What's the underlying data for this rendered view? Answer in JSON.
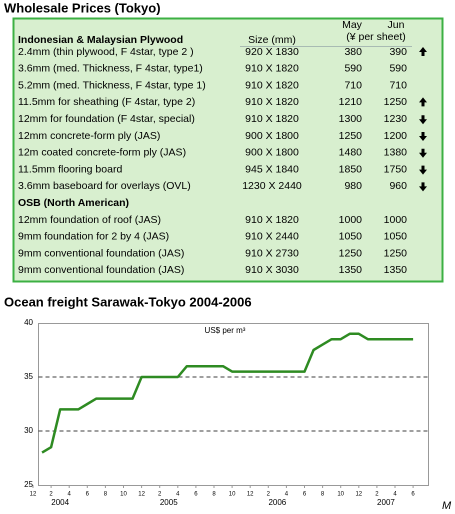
{
  "table": {
    "title": "Wholesale Prices (Tokyo)",
    "header": {
      "section": "Indonesian & Malaysian Plywood",
      "size": "Size (mm)",
      "may": "May",
      "jun": "Jun",
      "unit": "(¥ per sheet)"
    },
    "rows": [
      {
        "name": "2.4mm  (thin plywood, F 4star, type 2 )",
        "size": "920 X 1830",
        "may": 380,
        "jun": 390,
        "trend": "up"
      },
      {
        "name": "3.6mm  (med. Thickness,  F 4star, type1)",
        "size": "910 X 1820",
        "may": 590,
        "jun": 590
      },
      {
        "name": "5.2mm  (med. Thickness, F 4star, type 1)",
        "size": "910 X 1820",
        "may": 710,
        "jun": 710
      },
      {
        "name": "11.5mm  for sheathing (F 4star, type 2)",
        "size": "910 X 1820",
        "may": 1210,
        "jun": 1250,
        "trend": "up"
      },
      {
        "name": "12mm for foundation (F 4star, special)",
        "size": "910 X 1820",
        "may": 1300,
        "jun": 1230,
        "trend": "down"
      },
      {
        "name": "12mm concrete-form ply (JAS)",
        "size": "900 X 1800",
        "may": 1250,
        "jun": 1200,
        "trend": "down"
      },
      {
        "name": "12m coated concrete-form ply (JAS)",
        "size": "900 X 1800",
        "may": 1480,
        "jun": 1380,
        "trend": "down"
      },
      {
        "name": "11.5mm flooring board",
        "size": "945 X 1840",
        "may": 1850,
        "jun": 1750,
        "trend": "down"
      },
      {
        "name": "3.6mm baseboard for overlays (OVL)",
        "size": "1230 X 2440",
        "may": 980,
        "jun": 960,
        "trend": "down"
      }
    ],
    "section2": "OSB (North American)",
    "rows2": [
      {
        "name": "12mm foundation of roof (JAS)",
        "size": "910 X 1820",
        "may": 1000,
        "jun": 1000
      },
      {
        "name": "9mm foundation for 2 by 4 (JAS)",
        "size": "910 X 2440",
        "may": 1050,
        "jun": 1050
      },
      {
        "name": "9mm conventional foundation (JAS)",
        "size": "910 X 2730",
        "may": 1250,
        "jun": 1250
      },
      {
        "name": "9mm conventional foundation (JAS)",
        "size": "910 X 3030",
        "may": 1350,
        "jun": 1350
      }
    ]
  },
  "chart_data": {
    "type": "line",
    "title": "Ocean freight Sarawak-Tokyo 2004-2006",
    "annotation": "US$ per m³",
    "x_label": "M",
    "x": [
      "2004-01",
      "2004-02",
      "2004-03",
      "2004-04",
      "2004-05",
      "2004-06",
      "2004-07",
      "2004-08",
      "2004-09",
      "2004-10",
      "2004-11",
      "2004-12",
      "2005-01",
      "2005-02",
      "2005-03",
      "2005-04",
      "2005-05",
      "2005-06",
      "2005-07",
      "2005-08",
      "2005-09",
      "2005-10",
      "2005-11",
      "2005-12",
      "2006-01",
      "2006-02",
      "2006-03",
      "2006-04",
      "2006-05",
      "2006-06",
      "2006-07",
      "2006-08",
      "2006-09",
      "2006-10",
      "2006-11",
      "2006-12",
      "2007-01",
      "2007-02",
      "2007-03",
      "2007-04",
      "2007-05",
      "2007-06"
    ],
    "series": [
      {
        "color": "#2e8b22",
        "values": [
          28,
          28.5,
          32,
          32,
          32,
          32.5,
          33,
          33,
          33,
          33,
          33,
          35,
          35,
          35,
          35,
          35,
          36,
          36,
          36,
          36,
          36,
          35.5,
          35.5,
          35.5,
          35.5,
          35.5,
          35.5,
          35.5,
          35.5,
          35.5,
          37.5,
          38,
          38.5,
          38.5,
          39,
          39,
          38.5,
          38.5,
          38.5,
          38.5,
          38.5,
          38.5
        ]
      }
    ],
    "ylim": [
      25,
      40
    ],
    "yticks": [
      25,
      30,
      35,
      40
    ],
    "grid": true,
    "xticks": [
      {
        "value": "2003-12",
        "label": "12"
      },
      {
        "value": "2004-02",
        "label": "2"
      },
      {
        "value": "2004-04",
        "label": "4"
      },
      {
        "value": "2004-06",
        "label": "6"
      },
      {
        "value": "2004-08",
        "label": "8"
      },
      {
        "value": "2004-10",
        "label": "10"
      },
      {
        "value": "2004-12",
        "label": "12"
      },
      {
        "value": "2005-02",
        "label": "2"
      },
      {
        "value": "2005-04",
        "label": "4"
      },
      {
        "value": "2005-06",
        "label": "6"
      },
      {
        "value": "2005-08",
        "label": "8"
      },
      {
        "value": "2005-10",
        "label": "10"
      },
      {
        "value": "2005-12",
        "label": "12"
      },
      {
        "value": "2006-02",
        "label": "2"
      },
      {
        "value": "2006-04",
        "label": "4"
      },
      {
        "value": "2006-06",
        "label": "6"
      },
      {
        "value": "2006-08",
        "label": "8"
      },
      {
        "value": "2006-10",
        "label": "10"
      },
      {
        "value": "2006-12",
        "label": "12"
      },
      {
        "value": "2007-02",
        "label": "2"
      },
      {
        "value": "2007-04",
        "label": "4"
      },
      {
        "value": "2007-06",
        "label": "6"
      }
    ],
    "years": [
      "2004",
      "2005",
      "2006",
      "2007"
    ]
  }
}
